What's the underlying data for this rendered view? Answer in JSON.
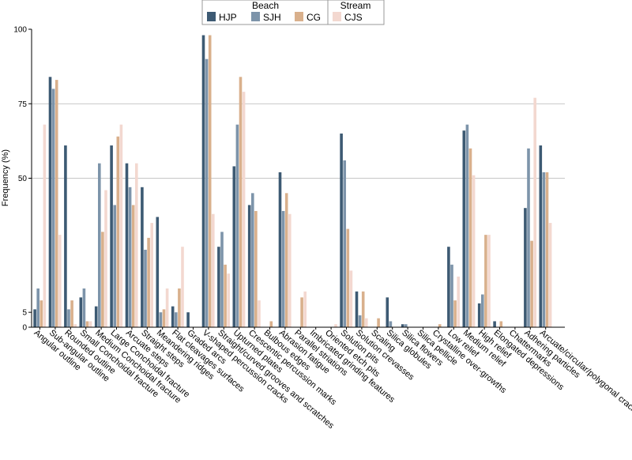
{
  "chart_data": {
    "type": "bar",
    "title": "",
    "xlabel": "",
    "ylabel": "Frequency (%)",
    "ylim": [
      0,
      100
    ],
    "yticks": [
      0,
      5,
      50,
      75,
      100
    ],
    "gridlines": [
      50,
      75
    ],
    "legend": {
      "placement": "top-center",
      "groups": [
        {
          "title": "Beach",
          "series": [
            "HJP",
            "SJH",
            "CG"
          ]
        },
        {
          "title": "Stream",
          "series": [
            "CJS"
          ]
        }
      ]
    },
    "categories": [
      "Angular outline",
      "Sub-angular outline",
      "Rounded outline",
      "Small Conchoidal fracture",
      "Medium Conchoidal fracture",
      "Large Conchoidal fracture",
      "Arcuate steps",
      "Straight steps",
      "Meandering ridges",
      "Flat cleavages surfaces",
      "Graded arcs",
      "V-shaped percussion cracks",
      "Straight/curved grooves and scratches",
      "Upturned plates",
      "Crescentic percussion marks",
      "Bulbous edges",
      "Abrasion fatigue",
      "Parallel striations",
      "Imbricated grinding features",
      "Oriented etch pits",
      "Solution pits",
      "Solution crevasses",
      "Scaling",
      "Silica globules",
      "Silica flowers",
      "Silica pellicle",
      "Crystalline over-growths",
      "Low relief",
      "Medium relief",
      "High relief",
      "Elongated depressions",
      "Chattermarks",
      "Adhering particles",
      "Arcuate/circular/polygonal cracks"
    ],
    "series": [
      {
        "name": "HJP",
        "color": "#3d5a73",
        "values": [
          6,
          84,
          61,
          10,
          7,
          61,
          55,
          47,
          37,
          7,
          5,
          98,
          27,
          54,
          41,
          0,
          52,
          0,
          0,
          0,
          65,
          12,
          0,
          10,
          1,
          0,
          0,
          27,
          66,
          8,
          2,
          0,
          40,
          61
        ]
      },
      {
        "name": "SJH",
        "color": "#7d94aa",
        "values": [
          13,
          80,
          6,
          13,
          55,
          41,
          47,
          26,
          5,
          5,
          0,
          90,
          32,
          68,
          45,
          0,
          39,
          0,
          0,
          0,
          56,
          4,
          0,
          2,
          1,
          0,
          0,
          21,
          68,
          11,
          0,
          0,
          60,
          52
        ]
      },
      {
        "name": "CG",
        "color": "#d9b08c",
        "values": [
          9,
          83,
          9,
          2,
          32,
          64,
          41,
          30,
          6,
          13,
          0,
          98,
          21,
          84,
          39,
          2,
          45,
          10,
          0,
          0,
          33,
          12,
          3,
          0,
          0,
          0,
          1,
          9,
          60,
          31,
          2,
          0,
          29,
          52
        ]
      },
      {
        "name": "CJS",
        "color": "#f3d8d0",
        "values": [
          68,
          31,
          1,
          2,
          46,
          68,
          55,
          35,
          13,
          27,
          0,
          38,
          18,
          79,
          9,
          0,
          38,
          12,
          0,
          1,
          19,
          3,
          0,
          0,
          0,
          0,
          0,
          17,
          51,
          31,
          0,
          0,
          77,
          35
        ]
      }
    ]
  }
}
